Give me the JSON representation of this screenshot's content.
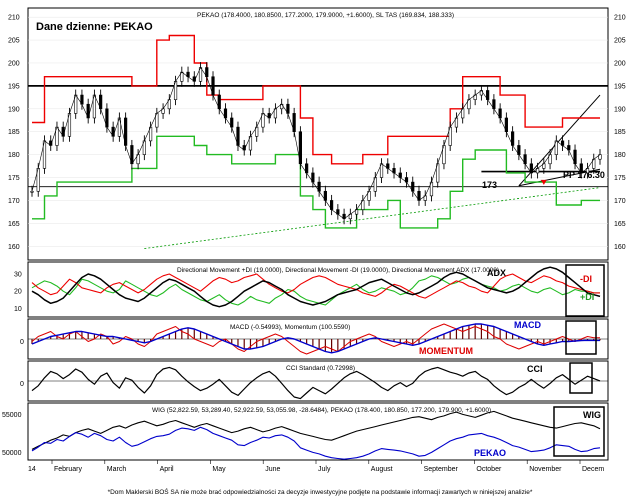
{
  "chart_data": {
    "type": "line",
    "symbol": "PEKAO",
    "title": "Dane dzienne: PEKAO",
    "header": "PEKAO (178.4000, 180.8500, 177.2000, 179.9000, +1.6000), SL TAS (169.834, 188.333)",
    "months": [
      "February",
      "March",
      "April",
      "May",
      "June",
      "July",
      "August",
      "September",
      "October",
      "November",
      "Decem"
    ],
    "x_start_label": "14",
    "price": {
      "ylim": [
        157,
        212
      ],
      "yticks": [
        "160",
        "165",
        "170",
        "175",
        "180",
        "185",
        "190",
        "195",
        "200",
        "205",
        "210"
      ],
      "close": [
        172,
        177,
        183,
        182,
        186,
        184,
        189,
        193,
        191,
        188,
        193,
        190,
        186,
        184,
        188,
        182,
        178,
        180,
        183,
        186,
        189,
        190,
        192,
        196,
        198,
        197,
        196,
        199,
        197,
        193,
        190,
        188,
        186,
        182,
        181,
        184,
        186,
        189,
        188,
        190,
        191,
        189,
        185,
        178,
        176,
        174,
        172,
        170,
        168,
        167,
        166,
        167,
        168,
        170,
        172,
        175,
        178,
        177,
        176,
        175,
        174,
        172,
        170,
        171,
        174,
        178,
        182,
        186,
        188,
        190,
        192,
        193,
        194,
        192,
        190,
        188,
        185,
        182,
        180,
        178,
        176,
        177,
        178,
        180,
        183,
        182,
        181,
        178,
        176,
        177,
        179,
        180
      ],
      "trailing_stop_upper": [
        187,
        187,
        197,
        197,
        197,
        197,
        197,
        197,
        197,
        197,
        197,
        197,
        197,
        197,
        197,
        197,
        195,
        195,
        195,
        195,
        205,
        205,
        206,
        206,
        206,
        206,
        200,
        200,
        193,
        193,
        192,
        192,
        192,
        192,
        192,
        192,
        192,
        195,
        195,
        195,
        195,
        195,
        195,
        188,
        188,
        180,
        180,
        180,
        178,
        178,
        178,
        178,
        178,
        180,
        180,
        180,
        180,
        184,
        184,
        184,
        184,
        184,
        184,
        184,
        184,
        184,
        184,
        190,
        190,
        197,
        197,
        197,
        197,
        197,
        197,
        193,
        193,
        193,
        193,
        186,
        186,
        186,
        186,
        186,
        186,
        188,
        188,
        188,
        188,
        188,
        188,
        188
      ],
      "trailing_stop_lower": [
        166,
        166,
        171,
        171,
        174,
        174,
        174,
        174,
        174,
        174,
        174,
        174,
        174,
        174,
        174,
        174,
        177,
        177,
        177,
        177,
        184,
        184,
        184,
        184,
        184,
        184,
        182,
        182,
        180,
        180,
        180,
        180,
        178,
        178,
        178,
        178,
        178,
        178,
        178,
        180,
        180,
        180,
        180,
        171,
        171,
        168,
        168,
        164,
        164,
        164,
        164,
        164,
        168,
        168,
        168,
        168,
        168,
        170,
        170,
        164,
        164,
        164,
        164,
        164,
        164,
        166,
        166,
        172,
        172,
        179,
        179,
        181,
        181,
        181,
        181,
        181,
        176,
        176,
        176,
        174,
        174,
        174,
        174,
        174,
        169,
        169,
        169,
        169,
        170,
        170,
        170,
        170
      ],
      "resistance": 195,
      "support": 173,
      "support_label": "173",
      "pp_label": "PP 176.30",
      "pp_value": 176.3
    },
    "dmi": {
      "label": "Directional Movement +DI (19.0000), Directional Movement -DI (19.0000), Directional Movement ADX (17.0000)",
      "yticks": [
        "10",
        "20",
        "30"
      ],
      "ylim": [
        5,
        37
      ],
      "adx_label": "ADX",
      "legend_minus": "-DI",
      "legend_plus": "+DI",
      "plus_di": [
        22,
        24,
        26,
        25,
        23,
        20,
        18,
        22,
        27,
        26,
        24,
        22,
        20,
        19,
        21,
        26,
        24,
        22,
        20,
        18,
        17,
        19,
        22,
        24,
        21,
        19,
        17,
        15,
        14,
        16,
        18,
        15,
        13,
        12,
        14,
        17,
        15,
        14,
        13,
        16,
        18,
        21,
        20,
        17,
        15,
        14,
        13,
        12,
        15,
        18,
        20,
        22,
        24,
        21,
        19,
        20,
        22,
        21,
        20,
        18,
        19,
        22,
        26,
        27,
        29,
        28,
        26,
        24,
        25,
        27,
        28,
        26,
        24,
        23,
        22,
        20,
        21,
        23,
        24,
        22,
        20,
        19,
        21,
        22,
        20,
        18,
        19,
        21,
        20,
        20,
        19,
        19
      ],
      "minus_di": [
        25,
        22,
        20,
        18,
        19,
        23,
        27,
        25,
        22,
        21,
        20,
        19,
        22,
        24,
        25,
        23,
        21,
        19,
        21,
        24,
        27,
        29,
        30,
        28,
        26,
        24,
        22,
        20,
        23,
        26,
        28,
        27,
        25,
        26,
        28,
        29,
        30,
        27,
        24,
        22,
        20,
        19,
        21,
        24,
        26,
        28,
        29,
        28,
        26,
        24,
        23,
        22,
        21,
        19,
        18,
        17,
        19,
        22,
        24,
        23,
        21,
        19,
        17,
        16,
        18,
        20,
        22,
        24,
        26,
        25,
        23,
        22,
        20,
        19,
        23,
        27,
        29,
        30,
        28,
        26,
        25,
        27,
        29,
        28,
        26,
        25,
        23,
        22,
        21,
        20,
        19,
        19
      ],
      "adx": [
        20,
        18,
        15,
        13,
        14,
        16,
        20,
        24,
        28,
        30,
        29,
        27,
        24,
        21,
        18,
        16,
        15,
        14,
        16,
        19,
        22,
        25,
        27,
        26,
        24,
        22,
        20,
        17,
        14,
        12,
        11,
        12,
        14,
        17,
        20,
        22,
        24,
        26,
        25,
        23,
        21,
        18,
        16,
        14,
        13,
        12,
        13,
        14,
        16,
        18,
        19,
        20,
        21,
        23,
        25,
        26,
        27,
        25,
        23,
        21,
        19,
        18,
        19,
        21,
        23,
        25,
        28,
        30,
        31,
        30,
        28,
        26,
        24,
        22,
        21,
        20,
        19,
        20,
        22,
        25,
        28,
        31,
        33,
        34,
        33,
        31,
        28,
        25,
        22,
        19,
        18,
        17
      ]
    },
    "macd": {
      "label": "MACD (-0.54993), Momentum (100.5590)",
      "zero_label": "0",
      "macd_label": "MACD",
      "momentum_label": "MOMENTUM",
      "ylim": [
        -8,
        8
      ],
      "macd": [
        -2,
        -1,
        0,
        1,
        1.5,
        2,
        2.5,
        3,
        3,
        2.5,
        2,
        1.5,
        1,
        1,
        0.5,
        0,
        -0.5,
        -1,
        -1.5,
        -1,
        0,
        1,
        2,
        3,
        4,
        4.5,
        4,
        3,
        2,
        1,
        0,
        -1,
        -2,
        -3,
        -4,
        -4,
        -3.5,
        -3,
        -2,
        -1,
        0,
        0.5,
        0,
        -1,
        -2,
        -3,
        -4,
        -5,
        -5.5,
        -5,
        -4,
        -3,
        -2,
        -1,
        0,
        0.5,
        0,
        -0.5,
        -1,
        -1.5,
        -2,
        -2.5,
        -2,
        -1,
        0,
        1,
        2,
        3,
        4,
        5,
        5.5,
        6,
        6,
        5.5,
        5,
        4,
        3,
        2,
        1,
        0,
        -1,
        -2,
        -2.5,
        -2,
        -1.5,
        -1,
        -1,
        -0.8,
        -0.6,
        -0.5,
        -0.55,
        -0.55
      ],
      "momentum": [
        -1,
        1,
        2,
        3,
        1,
        0,
        2,
        3,
        1,
        -1,
        0,
        2,
        1,
        -2,
        -1,
        1,
        0,
        -2,
        -3,
        -1,
        2,
        3,
        4,
        5,
        3,
        2,
        0,
        -1,
        -2,
        -3,
        -1,
        0,
        -2,
        -4,
        -5,
        -3,
        -1,
        0,
        1,
        2,
        1,
        -1,
        -3,
        -5,
        -6,
        -5,
        -4,
        -3,
        -4,
        -5,
        -3,
        -1,
        0,
        1,
        2,
        1,
        -1,
        -2,
        -3,
        -2,
        -1,
        -2,
        0,
        2,
        4,
        5,
        6,
        5,
        4,
        3,
        4,
        5,
        4,
        3,
        1,
        0,
        -2,
        -3,
        -4,
        -3,
        -2,
        -1,
        -2,
        -1,
        0,
        1,
        0,
        -1,
        0,
        1,
        0.5,
        0.5
      ]
    },
    "cci": {
      "label": "CCI Standard (0.72998)",
      "zero_label": "0",
      "cci_label": "CCI",
      "ylim": [
        -250,
        250
      ],
      "values": [
        -120,
        -60,
        40,
        120,
        90,
        30,
        80,
        150,
        110,
        20,
        -40,
        60,
        100,
        -20,
        -90,
        40,
        10,
        -80,
        -150,
        -60,
        80,
        150,
        170,
        140,
        60,
        -10,
        -70,
        -120,
        -90,
        -40,
        20,
        -60,
        -140,
        -180,
        -100,
        -20,
        40,
        90,
        120,
        60,
        -30,
        -120,
        -200,
        -220,
        -150,
        -80,
        -120,
        -160,
        -100,
        -30,
        40,
        90,
        120,
        80,
        30,
        -20,
        -80,
        -120,
        -60,
        -20,
        -70,
        -30,
        60,
        120,
        150,
        170,
        140,
        110,
        90,
        60,
        100,
        120,
        60,
        20,
        -60,
        -120,
        -170,
        -140,
        -80,
        -40,
        20,
        -40,
        -90,
        -30,
        40,
        80,
        20,
        -40,
        10,
        60,
        30,
        0.7
      ],
      "box_open": "(",
      "box_close": ")"
    },
    "wig": {
      "label": "WIG (52,822.59, 53,289.40, 52,922.59, 53,055.98, -28.6484), PEKAO (178.400, 180.850, 177.200, 179.900, +1.6000)",
      "yticks": [
        "50000",
        "55000"
      ],
      "ylim": [
        49000,
        56500
      ],
      "wig_label": "WIG",
      "pekao_label": "PEKAO",
      "wig": [
        50400,
        50800,
        51200,
        51600,
        51900,
        52300,
        52100,
        52600,
        52900,
        53100,
        52800,
        52500,
        52900,
        53300,
        53500,
        53200,
        53600,
        53900,
        54100,
        53800,
        53500,
        53700,
        54000,
        54200,
        53900,
        53600,
        53300,
        53600,
        53800,
        53500,
        53200,
        52900,
        52600,
        52800,
        53100,
        53300,
        53000,
        52700,
        52900,
        53200,
        53400,
        53100,
        52800,
        52500,
        52300,
        52100,
        51900,
        51700,
        51600,
        51900,
        52200,
        52500,
        52800,
        53000,
        53200,
        53400,
        53600,
        53800,
        54000,
        54200,
        54400,
        54600,
        54700,
        54500,
        54300,
        54600,
        54800,
        55100,
        55300,
        55000,
        54800,
        54600,
        54900,
        55200,
        55400,
        55100,
        54800,
        54500,
        54300,
        54100,
        53900,
        53700,
        53500,
        53300,
        53200,
        53400,
        53600,
        53800,
        53900,
        53700,
        53500,
        53100
      ],
      "pekao": [
        50200,
        50700,
        51300,
        51200,
        51700,
        51500,
        52100,
        52600,
        52400,
        52000,
        52500,
        52200,
        51700,
        51500,
        52000,
        51300,
        50800,
        51000,
        51400,
        51800,
        52100,
        52200,
        52400,
        52900,
        53200,
        53100,
        52900,
        53300,
        53000,
        52500,
        52200,
        51900,
        51600,
        51000,
        50900,
        51300,
        51600,
        52000,
        51900,
        52200,
        52300,
        52000,
        51500,
        50600,
        50300,
        50000,
        49800,
        49500,
        49300,
        49200,
        49100,
        49200,
        49300,
        49500,
        49800,
        50200,
        50500,
        50400,
        50300,
        50200,
        50000,
        49800,
        49500,
        49600,
        50000,
        50500,
        51000,
        51500,
        51800,
        52000,
        52300,
        52400,
        52500,
        52200,
        52000,
        51700,
        51300,
        50900,
        50700,
        50400,
        50100,
        50200,
        50300,
        50600,
        51000,
        50900,
        50800,
        50400,
        50100,
        50200,
        50500,
        50600
      ]
    },
    "footer": "*Dom Maklerski BOŚ SA nie może brać odpowiedzialności za decyzje inwestycyjne podjęte na podstawie informacji zawartych w niniejszej analizie*",
    "colors": {
      "price": "#000000",
      "upper": "#ee0000",
      "lower": "#22bb22",
      "macd": "#0000cc",
      "momentum": "#dd0000",
      "wig": "#0000cc",
      "hist": "#660000",
      "trend": "#009900"
    }
  }
}
